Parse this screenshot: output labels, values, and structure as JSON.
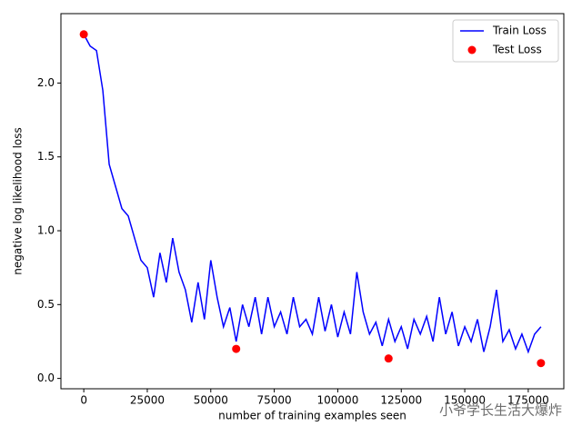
{
  "chart_data": {
    "type": "line",
    "xlabel": "number of training examples seen",
    "ylabel": "negative log likelihood loss",
    "xlim": [
      -9000,
      189000
    ],
    "ylim": [
      -0.07,
      2.47
    ],
    "xticks": [
      0,
      25000,
      50000,
      75000,
      100000,
      125000,
      150000,
      175000
    ],
    "yticks": [
      {
        "value": 0,
        "label": "0.0"
      },
      {
        "value": 0.5,
        "label": "0.5"
      },
      {
        "value": 1,
        "label": "1.0"
      },
      {
        "value": 1.5,
        "label": "1.5"
      },
      {
        "value": 2,
        "label": "2.0"
      }
    ],
    "legend": "upper right",
    "series": [
      {
        "name": "Train Loss",
        "type": "line",
        "color": "#0000ff",
        "x": [
          0,
          2500,
          5000,
          7500,
          10000,
          12500,
          15000,
          17500,
          20000,
          22500,
          25000,
          27500,
          30000,
          32500,
          35000,
          37500,
          40000,
          42500,
          45000,
          47500,
          50000,
          52500,
          55000,
          57500,
          60000,
          62500,
          65000,
          67500,
          70000,
          72500,
          75000,
          77500,
          80000,
          82500,
          85000,
          87500,
          90000,
          92500,
          95000,
          97500,
          100000,
          102500,
          105000,
          107500,
          110000,
          112500,
          115000,
          117500,
          120000,
          122500,
          125000,
          127500,
          130000,
          132500,
          135000,
          137500,
          140000,
          142500,
          145000,
          147500,
          150000,
          152500,
          155000,
          157500,
          160000,
          162500,
          165000,
          167500,
          170000,
          172500,
          175000,
          177500,
          180000
        ],
        "values": [
          2.33,
          2.25,
          2.22,
          1.95,
          1.45,
          1.3,
          1.15,
          1.1,
          0.95,
          0.8,
          0.75,
          0.55,
          0.85,
          0.65,
          0.95,
          0.72,
          0.6,
          0.38,
          0.65,
          0.4,
          0.8,
          0.55,
          0.35,
          0.48,
          0.25,
          0.5,
          0.35,
          0.55,
          0.3,
          0.55,
          0.35,
          0.45,
          0.3,
          0.55,
          0.35,
          0.4,
          0.3,
          0.55,
          0.32,
          0.5,
          0.28,
          0.45,
          0.3,
          0.72,
          0.45,
          0.3,
          0.38,
          0.22,
          0.4,
          0.25,
          0.35,
          0.2,
          0.4,
          0.3,
          0.42,
          0.25,
          0.55,
          0.3,
          0.45,
          0.22,
          0.35,
          0.25,
          0.4,
          0.18,
          0.35,
          0.6,
          0.25,
          0.33,
          0.2,
          0.3,
          0.18,
          0.3,
          0.35
        ]
      },
      {
        "name": "Test Loss",
        "type": "scatter",
        "color": "#ff0000",
        "x": [
          0,
          60000,
          120000,
          180000
        ],
        "values": [
          2.33,
          0.2,
          0.135,
          0.104
        ]
      }
    ],
    "watermark": "小爷学长生活大爆炸"
  }
}
